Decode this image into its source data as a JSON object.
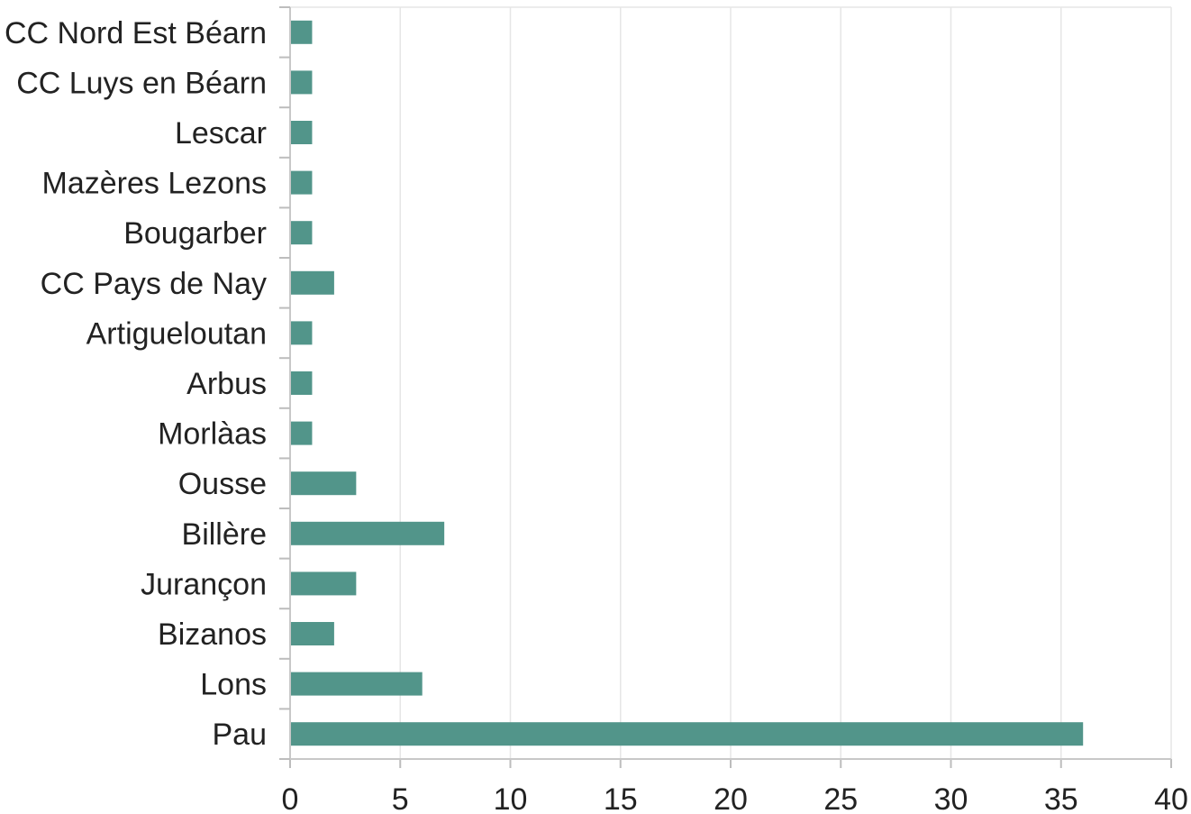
{
  "chart_data": {
    "type": "bar",
    "orientation": "horizontal",
    "categories": [
      "CC Nord Est Béarn",
      "CC Luys en Béarn",
      "Lescar",
      "Mazères Lezons",
      "Bougarber",
      "CC Pays de Nay",
      "Artigueloutan",
      "Arbus",
      "Morlàas",
      "Ousse",
      "Billère",
      "Jurançon",
      "Bizanos",
      "Lons",
      "Pau"
    ],
    "values": [
      1,
      1,
      1,
      1,
      1,
      2,
      1,
      1,
      1,
      3,
      7,
      3,
      2,
      6,
      36
    ],
    "xticks": [
      "0",
      "5",
      "10",
      "15",
      "20",
      "25",
      "30",
      "35",
      "40"
    ],
    "xlim": [
      0,
      40
    ],
    "title": "",
    "xlabel": "",
    "ylabel": "",
    "grid": "vertical",
    "legend": "none",
    "bar_color": "#52958a"
  }
}
